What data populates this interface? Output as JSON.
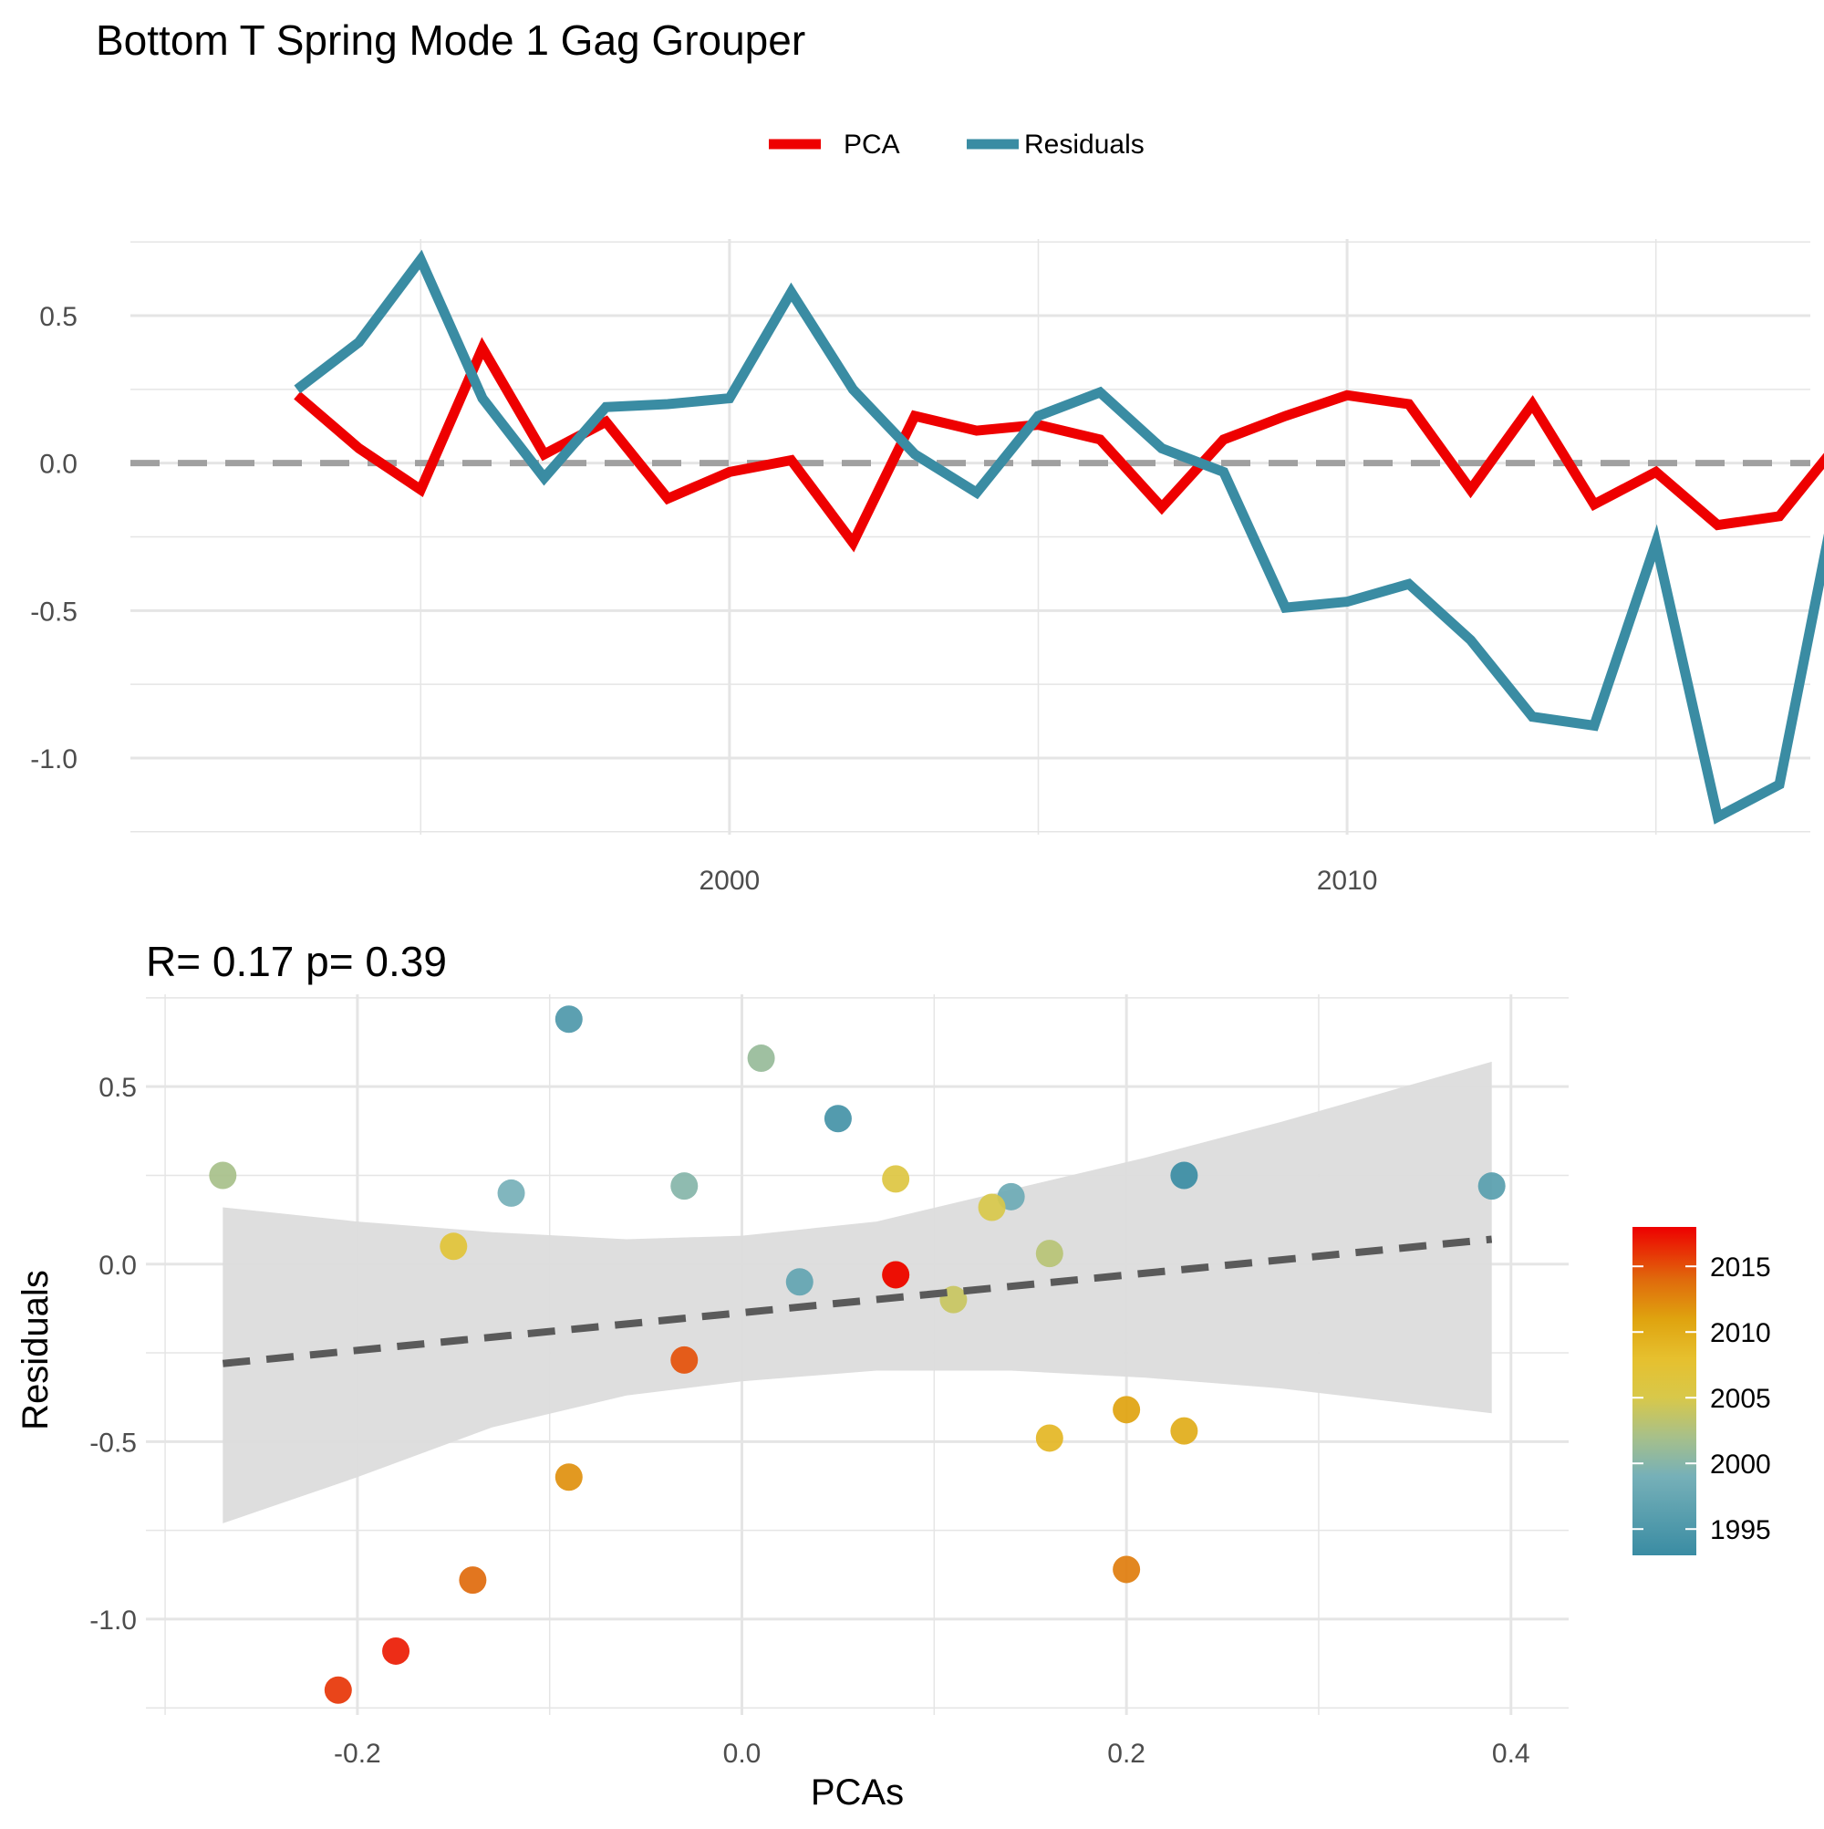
{
  "title": "Bottom T Spring Mode 1 Gag Grouper",
  "legend": {
    "items": [
      "PCA",
      "Residuals"
    ]
  },
  "colors": {
    "pca": "#ee0000",
    "residuals": "#3a8ca3",
    "grid": "#e5e5e5",
    "zero_line": "#a0a0a0",
    "ribbon": "#dcdcdc",
    "fit_line": "#5a5a5a",
    "axis_text": "#4d4d4d"
  },
  "chart_data": [
    {
      "type": "line",
      "x": [
        1993,
        1994,
        1995,
        1996,
        1997,
        1998,
        1999,
        2000,
        2001,
        2002,
        2003,
        2004,
        2005,
        2006,
        2007,
        2008,
        2009,
        2010,
        2011,
        2012,
        2013,
        2014,
        2015,
        2016,
        2017,
        2018
      ],
      "series": [
        {
          "name": "PCA",
          "values": [
            0.23,
            0.05,
            -0.09,
            0.39,
            0.03,
            0.14,
            -0.12,
            -0.03,
            0.01,
            -0.27,
            0.16,
            0.11,
            0.13,
            0.08,
            -0.15,
            0.08,
            0.16,
            0.23,
            0.2,
            -0.09,
            0.2,
            -0.14,
            -0.03,
            -0.21,
            -0.18,
            0.08
          ]
        },
        {
          "name": "Residuals",
          "values": [
            0.25,
            0.41,
            0.69,
            0.22,
            -0.05,
            0.19,
            0.2,
            0.22,
            0.58,
            0.25,
            0.03,
            -0.1,
            0.16,
            0.24,
            0.05,
            -0.03,
            -0.49,
            -0.47,
            -0.41,
            -0.6,
            -0.86,
            -0.89,
            -0.27,
            -1.2,
            -1.09,
            -0.03
          ]
        }
      ],
      "xlim": [
        1990.3,
        2017.5
      ],
      "ylim": [
        -1.26,
        0.76
      ],
      "x_ticks": [
        2000,
        2010
      ],
      "y_ticks": [
        0.5,
        0.0,
        -0.5,
        -1.0
      ],
      "y_tick_labels": [
        "0.5",
        "0.0",
        "-0.5",
        "-1.0"
      ],
      "x_tick_labels": [
        "2000",
        "2010"
      ],
      "zero_line": 0,
      "grid": true,
      "legend_position": "top"
    },
    {
      "type": "scatter",
      "title": "R= 0.17  p= 0.39",
      "xlabel": "PCAs",
      "ylabel": "Residuals",
      "xlim": [
        -0.31,
        0.43
      ],
      "ylim": [
        -1.27,
        0.76
      ],
      "x_ticks": [
        -0.2,
        0.0,
        0.2,
        0.4
      ],
      "x_tick_labels": [
        "-0.2",
        "0.0",
        "0.2",
        "0.4"
      ],
      "y_ticks": [
        0.5,
        0.0,
        -0.5,
        -1.0
      ],
      "y_tick_labels": [
        "0.5",
        "0.0",
        "-0.5",
        "-1.0"
      ],
      "points": [
        {
          "x": 0.23,
          "y": 0.25,
          "year": 1993
        },
        {
          "x": 0.05,
          "y": 0.41,
          "year": 1994
        },
        {
          "x": -0.09,
          "y": 0.69,
          "year": 1995
        },
        {
          "x": 0.39,
          "y": 0.22,
          "year": 1996
        },
        {
          "x": 0.03,
          "y": -0.05,
          "year": 1997
        },
        {
          "x": 0.14,
          "y": 0.19,
          "year": 1998
        },
        {
          "x": -0.12,
          "y": 0.2,
          "year": 1999
        },
        {
          "x": -0.03,
          "y": 0.22,
          "year": 2000
        },
        {
          "x": 0.01,
          "y": 0.58,
          "year": 2001
        },
        {
          "x": -0.27,
          "y": 0.25,
          "year": 2002
        },
        {
          "x": 0.16,
          "y": 0.03,
          "year": 2003
        },
        {
          "x": 0.11,
          "y": -0.1,
          "year": 2004
        },
        {
          "x": 0.13,
          "y": 0.16,
          "year": 2005
        },
        {
          "x": 0.08,
          "y": 0.24,
          "year": 2006
        },
        {
          "x": -0.15,
          "y": 0.05,
          "year": 2007
        },
        {
          "x": 0.08,
          "y": -0.03,
          "year": 2008
        },
        {
          "x": 0.16,
          "y": -0.49,
          "year": 2009
        },
        {
          "x": 0.23,
          "y": -0.47,
          "year": 2010
        },
        {
          "x": 0.2,
          "y": -0.41,
          "year": 2011
        },
        {
          "x": -0.09,
          "y": -0.6,
          "year": 2012
        },
        {
          "x": 0.2,
          "y": -0.86,
          "year": 2013
        },
        {
          "x": -0.14,
          "y": -0.89,
          "year": 2014
        },
        {
          "x": -0.03,
          "y": -0.27,
          "year": 2015
        },
        {
          "x": -0.21,
          "y": -1.2,
          "year": 2016
        },
        {
          "x": -0.18,
          "y": -1.09,
          "year": 2017
        },
        {
          "x": 0.08,
          "y": -0.03,
          "year": 2018
        }
      ],
      "fit_line": {
        "x": [
          -0.27,
          0.39
        ],
        "y": [
          -0.28,
          0.07
        ]
      },
      "confidence_band": {
        "x": [
          -0.27,
          -0.2,
          -0.13,
          -0.06,
          0.0,
          0.07,
          0.14,
          0.21,
          0.28,
          0.39
        ],
        "upper": [
          0.16,
          0.12,
          0.09,
          0.07,
          0.08,
          0.12,
          0.21,
          0.3,
          0.4,
          0.57
        ],
        "lower": [
          -0.73,
          -0.6,
          -0.46,
          -0.37,
          -0.33,
          -0.3,
          -0.3,
          -0.32,
          -0.35,
          -0.42
        ]
      },
      "colorbar": {
        "title": "",
        "ticks": [
          2015,
          2010,
          2005,
          2000,
          1995
        ],
        "tick_labels": [
          "2015",
          "2010",
          "2005",
          "2000",
          "1995"
        ],
        "range": [
          1993,
          2018
        ],
        "stops": [
          {
            "year": 1993,
            "color": "#3a8ca3"
          },
          {
            "year": 1999,
            "color": "#76b0b8"
          },
          {
            "year": 2002,
            "color": "#a7c08a"
          },
          {
            "year": 2005,
            "color": "#d8c84a"
          },
          {
            "year": 2008,
            "color": "#e6c02e"
          },
          {
            "year": 2011,
            "color": "#dfa30f"
          },
          {
            "year": 2014,
            "color": "#e06a0c"
          },
          {
            "year": 2018,
            "color": "#ee0000"
          }
        ]
      },
      "grid": true,
      "legend_position": "right"
    }
  ]
}
